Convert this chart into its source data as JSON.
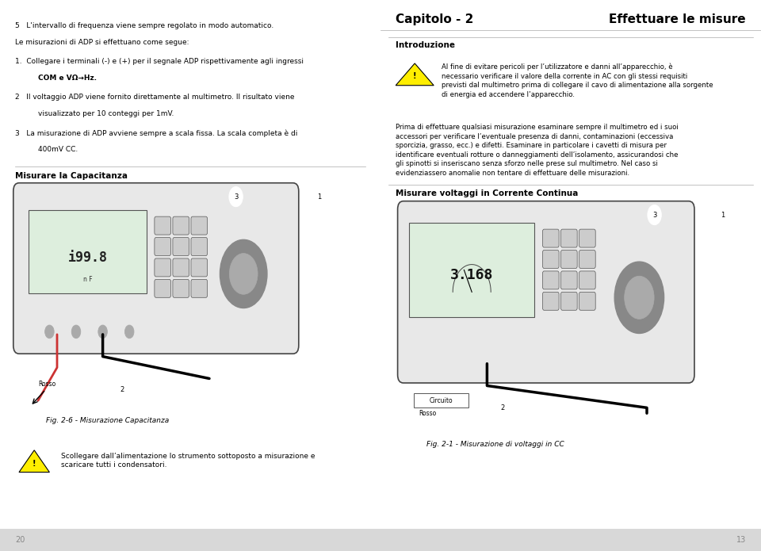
{
  "bg_color": "#ffffff",
  "left_bg": "#f5f5f5",
  "right_bg": "#ffffff",
  "divider_color": "#cccccc",
  "footer_color": "#d8d8d8",
  "text_color": "#000000",
  "page_number_left": "20",
  "page_number_right": "13",
  "left_column": {
    "line1": "5   L'intervallo di frequenza viene sempre regolato in modo automatico.",
    "line2": "Le misurazioni di ADP si effettuano come segue:",
    "item1_bold": "1.   Collegare i terminali (-) e (+) per il segnale ADP rispettivamente agli ingressi",
    "item1_bold2": "     COM e VΩ→Hz.",
    "item2": "2   Il voltaggio ADP viene fornito direttamente al multimetro. Il risultato viene",
    "item2b": "     visualizzato per 10 conteggi per 1mV.",
    "item3": "3   La misurazione di ADP avviene sempre a scala fissa. La scala completa è di",
    "item3b": "     400mV CC.",
    "section_header": "Misurare la Capacitanza",
    "fig_caption": "Fig. 2-6 - Misurazione Capacitanza",
    "warning_text": "Scollegare dall’alimentazione lo strumento sottoposto a misurazione e\nscaricare tutti i condensatori.",
    "display_value": "i99.8",
    "display_unit": "n F",
    "label_rosso": "Rosso",
    "label_1": "1",
    "label_2": "2",
    "label_3": "3"
  },
  "right_column": {
    "title_left": "Capitolo - 2",
    "title_right": "Effettuare le misure",
    "section_header": "Introduzione",
    "warning_text": "Al fine di evitare pericoli per l’utilizzatore e danni all’apparecchio, è\nnecessario verificare il valore della corrente in AC con gli stessi requisiti\nprevisti dal multimetro prima di collegare il cavo di alimentazione alla sorgente\ndi energia ed accendere l’apparecchio.",
    "para_text": "Prima di effettuare qualsiasi misurazione esaminare sempre il multimetro ed i suoi\naccessori per verificare l’eventuale presenza di danni, contaminazioni (eccessiva\nsporcizia, grasso, ecc.) e difetti. Esaminare in particolare i cavetti di misura per\nidentificare eventuali rotture o danneggiamenti dell’isolamento, assicurandosi che\ngli spinotti si inseriscano senza sforzo nelle prese sul multimetro. Nel caso si\nevidenziero anomalie non tentare di effettuare delle misurazioni.",
    "section_header2": "Misurare voltaggi in Corrente Continua",
    "fig_caption": "Fig. 2-1 - Misurazione di voltaggi in CC",
    "display_value": "3.168",
    "label_circuito": "Circuito",
    "label_rosso": "Rosso",
    "label_1": "1",
    "label_2": "2",
    "label_3": "3"
  }
}
